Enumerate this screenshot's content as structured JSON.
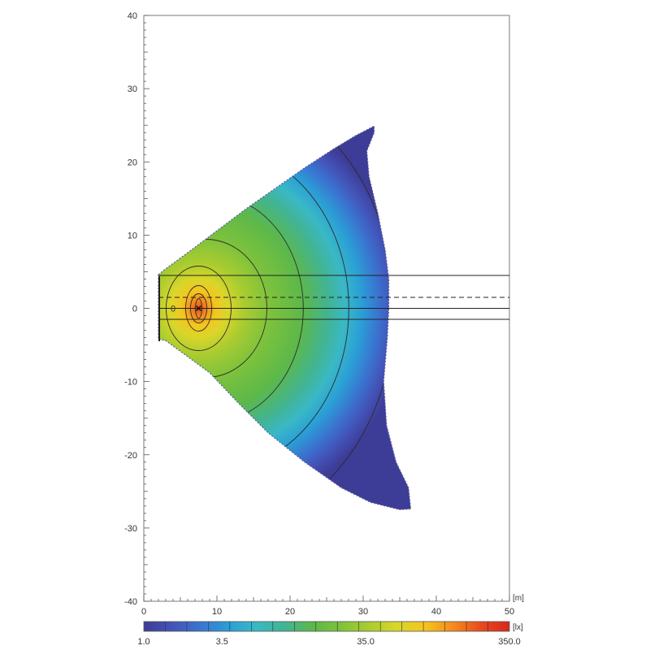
{
  "chart_data": {
    "type": "heatmap",
    "title": "",
    "x_unit": "[m]",
    "colorbar_unit": "[lx]",
    "xlim": [
      0,
      50
    ],
    "ylim": [
      -40,
      40
    ],
    "x_ticks": [
      0,
      10,
      20,
      30,
      40,
      50
    ],
    "y_ticks": [
      40,
      30,
      20,
      10,
      0,
      -10,
      -20,
      -30,
      -40
    ],
    "grid": false,
    "colorbar_ticks": [
      {
        "value": 1.0,
        "label": "1.0"
      },
      {
        "value": 3.5,
        "label": "3.5"
      },
      {
        "value": 35.0,
        "label": "35.0"
      },
      {
        "value": 350.0,
        "label": "350.0"
      }
    ],
    "colorbar_scale": "log",
    "colorbar_range": [
      1.0,
      350.0
    ],
    "colormap": [
      "#3d3c96",
      "#4353b8",
      "#3a74d0",
      "#2a9fd6",
      "#3ab8c5",
      "#42b493",
      "#5cb84a",
      "#7ec23c",
      "#aacc30",
      "#d9d62a",
      "#f4c51e",
      "#f48b1e",
      "#e84a1e",
      "#d8261e"
    ],
    "illuminance_region_outline": [
      [
        2.0,
        4.6
      ],
      [
        3,
        5.4
      ],
      [
        6,
        7.6
      ],
      [
        10,
        10.6
      ],
      [
        14,
        13.6
      ],
      [
        18,
        16.4
      ],
      [
        22,
        19.2
      ],
      [
        26,
        21.8
      ],
      [
        29,
        23.6
      ],
      [
        31.5,
        24.9
      ],
      [
        31.5,
        24.0
      ],
      [
        30.5,
        21.5
      ],
      [
        30.8,
        18.0
      ],
      [
        32,
        13.0
      ],
      [
        33,
        8.0
      ],
      [
        33.5,
        4.0
      ],
      [
        33.5,
        0
      ],
      [
        33.3,
        -4.0
      ],
      [
        32.8,
        -10.0
      ],
      [
        33.2,
        -16.0
      ],
      [
        34.5,
        -21.0
      ],
      [
        36.2,
        -24.5
      ],
      [
        36.5,
        -27.4
      ],
      [
        35,
        -27.5
      ],
      [
        31,
        -26.5
      ],
      [
        27,
        -24.5
      ],
      [
        22,
        -21.0
      ],
      [
        17,
        -17.0
      ],
      [
        13,
        -13.0
      ],
      [
        9,
        -8.8
      ],
      [
        6,
        -6.6
      ],
      [
        3,
        -4.4
      ],
      [
        2.0,
        -4.2
      ]
    ],
    "peak": {
      "x": 7.5,
      "y": 0,
      "marker": "x"
    },
    "secondary_marker": {
      "x": 4.0,
      "y": 0,
      "label": "0"
    },
    "reference_lines": [
      {
        "y": 4.5,
        "style": "solid"
      },
      {
        "y": 1.5,
        "style": "dashed"
      },
      {
        "y": 0,
        "style": "solid"
      },
      {
        "y": -1.5,
        "style": "solid"
      }
    ]
  }
}
